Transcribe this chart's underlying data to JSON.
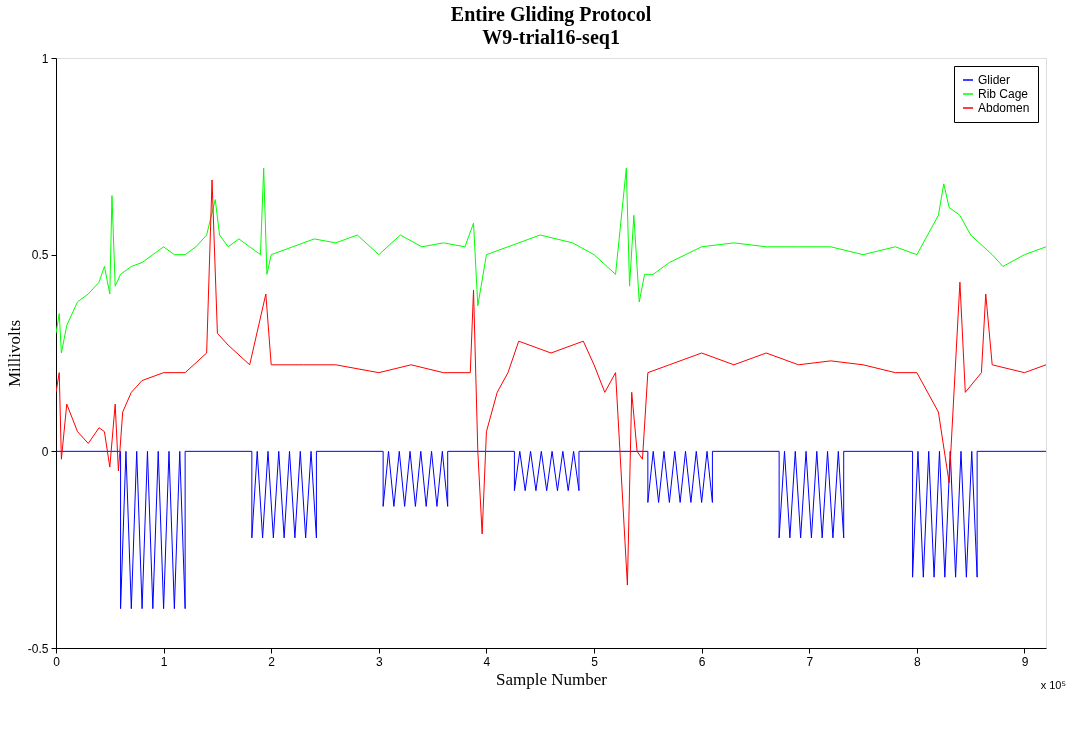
{
  "chart_data": {
    "type": "line",
    "title": "Entire Gliding Protocol",
    "subtitle": "W9-trial16-seq1",
    "xlabel": "Sample Number",
    "ylabel": "Millivolts",
    "annotations": [
      "x 10⁵"
    ],
    "xlim": [
      0,
      9.2
    ],
    "xticks": [
      0,
      1,
      2,
      3,
      4,
      5,
      6,
      7,
      8,
      9
    ],
    "ylim": [
      -0.5,
      1
    ],
    "yticks": [
      -0.5,
      0,
      0.5,
      1
    ],
    "grid": false,
    "legend": "top right",
    "marker": "none",
    "line_style": "solid",
    "series": [
      {
        "name": "Glider",
        "color": "#0000ff",
        "x": [
          0,
          0.6,
          0.6,
          0.65,
          0.7,
          0.75,
          0.8,
          0.85,
          0.9,
          0.95,
          1.0,
          1.05,
          1.1,
          1.15,
          1.2,
          1.2,
          1.82,
          1.82,
          1.87,
          1.92,
          1.97,
          2.02,
          2.07,
          2.12,
          2.17,
          2.22,
          2.27,
          2.32,
          2.37,
          2.42,
          2.42,
          3.04,
          3.04,
          3.09,
          3.14,
          3.19,
          3.24,
          3.29,
          3.34,
          3.39,
          3.44,
          3.49,
          3.54,
          3.59,
          3.64,
          3.64,
          4.26,
          4.26,
          4.31,
          4.36,
          4.41,
          4.46,
          4.51,
          4.56,
          4.61,
          4.66,
          4.71,
          4.76,
          4.81,
          4.86,
          4.86,
          5.5,
          5.5,
          5.55,
          5.6,
          5.65,
          5.7,
          5.75,
          5.8,
          5.85,
          5.9,
          5.95,
          6.0,
          6.05,
          6.1,
          6.1,
          6.72,
          6.72,
          6.77,
          6.82,
          6.87,
          6.92,
          6.97,
          7.02,
          7.07,
          7.12,
          7.17,
          7.22,
          7.27,
          7.32,
          7.32,
          7.96,
          7.96,
          8.01,
          8.06,
          8.11,
          8.16,
          8.21,
          8.26,
          8.31,
          8.36,
          8.41,
          8.46,
          8.51,
          8.56,
          8.56,
          9.2
        ],
        "values": [
          0,
          0,
          -0.4,
          0,
          -0.4,
          0,
          -0.4,
          0,
          -0.4,
          0,
          -0.4,
          0,
          -0.4,
          0,
          -0.4,
          0,
          0,
          -0.22,
          0,
          -0.22,
          0,
          -0.22,
          0,
          -0.22,
          0,
          -0.22,
          0,
          -0.22,
          0,
          -0.22,
          0,
          0,
          -0.14,
          0,
          -0.14,
          0,
          -0.14,
          0,
          -0.14,
          0,
          -0.14,
          0,
          -0.14,
          0,
          -0.14,
          0,
          0,
          -0.1,
          0,
          -0.1,
          0,
          -0.1,
          0,
          -0.1,
          0,
          -0.1,
          0,
          -0.1,
          0,
          -0.1,
          0,
          0,
          -0.13,
          0,
          -0.13,
          0,
          -0.13,
          0,
          -0.13,
          0,
          -0.13,
          0,
          -0.13,
          0,
          -0.13,
          0,
          0,
          -0.22,
          0,
          -0.22,
          0,
          -0.22,
          0,
          -0.22,
          0,
          -0.22,
          0,
          -0.22,
          0,
          -0.22,
          0,
          0,
          -0.32,
          0,
          -0.32,
          0,
          -0.32,
          0,
          -0.32,
          0,
          -0.32,
          0,
          -0.32,
          0,
          -0.32,
          0,
          0
        ]
      },
      {
        "name": "Rib Cage",
        "color": "#00ff00",
        "x": [
          0,
          0.03,
          0.05,
          0.1,
          0.2,
          0.3,
          0.4,
          0.45,
          0.5,
          0.52,
          0.55,
          0.6,
          0.7,
          0.8,
          0.9,
          1.0,
          1.1,
          1.2,
          1.3,
          1.4,
          1.48,
          1.52,
          1.6,
          1.7,
          1.8,
          1.9,
          1.93,
          1.96,
          2.0,
          2.2,
          2.4,
          2.6,
          2.8,
          3.0,
          3.2,
          3.4,
          3.6,
          3.8,
          3.88,
          3.92,
          4.0,
          4.2,
          4.5,
          4.8,
          5.0,
          5.2,
          5.3,
          5.33,
          5.37,
          5.42,
          5.47,
          5.55,
          5.7,
          6.0,
          6.3,
          6.6,
          6.9,
          7.2,
          7.5,
          7.8,
          8.0,
          8.2,
          8.25,
          8.3,
          8.4,
          8.5,
          8.7,
          8.8,
          9.0,
          9.2
        ],
        "values": [
          0.3,
          0.35,
          0.25,
          0.32,
          0.38,
          0.4,
          0.43,
          0.47,
          0.4,
          0.65,
          0.42,
          0.45,
          0.47,
          0.48,
          0.5,
          0.52,
          0.5,
          0.5,
          0.52,
          0.55,
          0.64,
          0.55,
          0.52,
          0.54,
          0.52,
          0.5,
          0.72,
          0.45,
          0.5,
          0.52,
          0.54,
          0.53,
          0.55,
          0.5,
          0.55,
          0.52,
          0.53,
          0.52,
          0.58,
          0.37,
          0.5,
          0.52,
          0.55,
          0.53,
          0.5,
          0.45,
          0.72,
          0.42,
          0.6,
          0.38,
          0.45,
          0.45,
          0.48,
          0.52,
          0.53,
          0.52,
          0.52,
          0.52,
          0.5,
          0.52,
          0.5,
          0.6,
          0.68,
          0.62,
          0.6,
          0.55,
          0.5,
          0.47,
          0.5,
          0.52
        ]
      },
      {
        "name": "Abdomen",
        "color": "#ff0000",
        "x": [
          0,
          0.03,
          0.05,
          0.1,
          0.2,
          0.3,
          0.4,
          0.45,
          0.5,
          0.55,
          0.58,
          0.62,
          0.7,
          0.8,
          1.0,
          1.2,
          1.4,
          1.45,
          1.5,
          1.6,
          1.8,
          1.95,
          2.0,
          2.3,
          2.6,
          3.0,
          3.3,
          3.6,
          3.85,
          3.88,
          3.92,
          3.96,
          4.0,
          4.1,
          4.2,
          4.3,
          4.6,
          4.9,
          5.0,
          5.1,
          5.2,
          5.31,
          5.35,
          5.4,
          5.45,
          5.5,
          5.7,
          6.0,
          6.3,
          6.6,
          6.9,
          7.2,
          7.5,
          7.8,
          8.0,
          8.2,
          8.3,
          8.4,
          8.45,
          8.6,
          8.64,
          8.7,
          9.0,
          9.2
        ],
        "values": [
          0.15,
          0.2,
          -0.02,
          0.12,
          0.05,
          0.02,
          0.06,
          0.05,
          -0.04,
          0.12,
          -0.05,
          0.1,
          0.15,
          0.18,
          0.2,
          0.2,
          0.25,
          0.69,
          0.3,
          0.27,
          0.22,
          0.4,
          0.22,
          0.22,
          0.22,
          0.2,
          0.22,
          0.2,
          0.2,
          0.41,
          0.0,
          -0.21,
          0.05,
          0.15,
          0.2,
          0.28,
          0.25,
          0.28,
          0.22,
          0.15,
          0.2,
          -0.34,
          0.15,
          0.0,
          -0.02,
          0.2,
          0.22,
          0.25,
          0.22,
          0.25,
          0.22,
          0.23,
          0.22,
          0.2,
          0.2,
          0.1,
          -0.08,
          0.43,
          0.15,
          0.2,
          0.4,
          0.22,
          0.2,
          0.22
        ]
      }
    ]
  }
}
